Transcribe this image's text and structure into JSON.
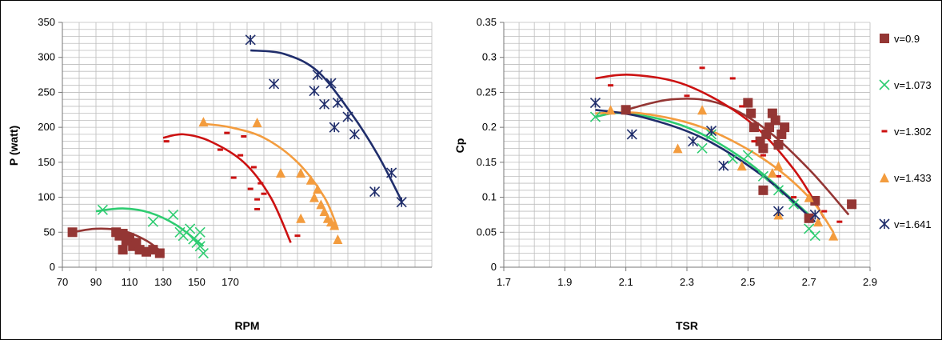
{
  "chart_data": [
    {
      "type": "scatter",
      "title": "",
      "xlabel": "RPM",
      "ylabel": "P (watt)",
      "xlim": [
        70,
        180
      ],
      "ylim": [
        0,
        350
      ],
      "xticks": [
        "70",
        "90",
        "110",
        "130",
        "150",
        "170"
      ],
      "yticks": [
        "0",
        "50",
        "100",
        "150",
        "200",
        "250",
        "300",
        "350"
      ],
      "grid": true,
      "series": [
        {
          "name": "v=0.9",
          "marker": "square",
          "color": "#943634",
          "points": [
            [
              73,
              50
            ],
            [
              86,
              50
            ],
            [
              87,
              45
            ],
            [
              88,
              48
            ],
            [
              89,
              38
            ],
            [
              90,
              42
            ],
            [
              88,
              25
            ],
            [
              91,
              30
            ],
            [
              92,
              35
            ],
            [
              93,
              25
            ],
            [
              95,
              22
            ],
            [
              97,
              25
            ],
            [
              99,
              20
            ]
          ],
          "trend": [
            [
              73,
              50
            ],
            [
              80,
              55
            ],
            [
              88,
              52
            ],
            [
              95,
              38
            ],
            [
              100,
              20
            ]
          ]
        },
        {
          "name": "v=1.073",
          "marker": "x",
          "color": "#2ecc71",
          "points": [
            [
              82,
              82
            ],
            [
              97,
              65
            ],
            [
              103,
              75
            ],
            [
              105,
              50
            ],
            [
              106,
              45
            ],
            [
              108,
              55
            ],
            [
              109,
              40
            ],
            [
              110,
              35
            ],
            [
              111,
              50
            ],
            [
              111,
              30
            ],
            [
              112,
              20
            ]
          ],
          "trend": [
            [
              80,
              80
            ],
            [
              88,
              84
            ],
            [
              96,
              78
            ],
            [
              104,
              60
            ],
            [
              112,
              30
            ]
          ]
        },
        {
          "name": "v=1.302",
          "marker": "dash",
          "color": "#cc1111",
          "points": [
            [
              101,
              180
            ],
            [
              117,
              168
            ],
            [
              119,
              192
            ],
            [
              121,
              128
            ],
            [
              123,
              160
            ],
            [
              124,
              187
            ],
            [
              126,
              112
            ],
            [
              127,
              143
            ],
            [
              128,
              97
            ],
            [
              128,
              83
            ],
            [
              129,
              120
            ],
            [
              130,
              105
            ],
            [
              140,
              45
            ]
          ],
          "trend": [
            [
              100,
              185
            ],
            [
              106,
              190
            ],
            [
              114,
              180
            ],
            [
              124,
              150
            ],
            [
              132,
              100
            ],
            [
              138,
              35
            ]
          ]
        },
        {
          "name": "v=1.433",
          "marker": "triangle",
          "color": "#f39c3e",
          "points": [
            [
              112,
              208
            ],
            [
              128,
              207
            ],
            [
              135,
              135
            ],
            [
              141,
              135
            ],
            [
              141,
              70
            ],
            [
              144,
              125
            ],
            [
              145,
              100
            ],
            [
              146,
              112
            ],
            [
              147,
              90
            ],
            [
              148,
              80
            ],
            [
              149,
              70
            ],
            [
              150,
              65
            ],
            [
              151,
              60
            ],
            [
              152,
              40
            ]
          ],
          "trend": [
            [
              112,
              205
            ],
            [
              120,
              200
            ],
            [
              130,
              185
            ],
            [
              140,
              150
            ],
            [
              148,
              100
            ],
            [
              152,
              55
            ]
          ]
        },
        {
          "name": "v=1.641",
          "marker": "star",
          "color": "#1f2d6b",
          "points": [
            [
              126,
              325
            ],
            [
              133,
              262
            ],
            [
              145,
              252
            ],
            [
              146,
              275
            ],
            [
              148,
              233
            ],
            [
              150,
              263
            ],
            [
              151,
              200
            ],
            [
              152,
              235
            ],
            [
              155,
              215
            ],
            [
              157,
              190
            ],
            [
              163,
              108
            ],
            [
              168,
              135
            ],
            [
              171,
              93
            ]
          ],
          "trend": [
            [
              126,
              310
            ],
            [
              136,
              305
            ],
            [
              146,
              280
            ],
            [
              156,
              220
            ],
            [
              164,
              160
            ],
            [
              171,
              95
            ]
          ]
        }
      ]
    },
    {
      "type": "scatter",
      "title": "",
      "xlabel": "TSR",
      "ylabel": "Cp",
      "xlim": [
        1.7,
        2.9
      ],
      "ylim": [
        0,
        0.35
      ],
      "xticks": [
        "1.7",
        "1.9",
        "2.1",
        "2.3",
        "2.5",
        "2.7",
        "2.9"
      ],
      "yticks": [
        "0",
        "0.05",
        "0.1",
        "0.15",
        "0.2",
        "0.25",
        "0.3",
        "0.35"
      ],
      "grid": true,
      "legend": {
        "position": "right",
        "entries": [
          "v=0.9",
          "v=1.073",
          "v=1.302",
          "v=1.433",
          "v=1.641"
        ]
      },
      "series": [
        {
          "name": "v=0.9",
          "marker": "square",
          "color": "#943634",
          "points": [
            [
              2.1,
              0.225
            ],
            [
              2.5,
              0.235
            ],
            [
              2.51,
              0.22
            ],
            [
              2.52,
              0.2
            ],
            [
              2.54,
              0.18
            ],
            [
              2.55,
              0.17
            ],
            [
              2.56,
              0.19
            ],
            [
              2.57,
              0.2
            ],
            [
              2.58,
              0.22
            ],
            [
              2.59,
              0.21
            ],
            [
              2.6,
              0.175
            ],
            [
              2.61,
              0.19
            ],
            [
              2.62,
              0.2
            ],
            [
              2.55,
              0.11
            ],
            [
              2.7,
              0.07
            ],
            [
              2.72,
              0.095
            ],
            [
              2.84,
              0.09
            ]
          ],
          "trend": [
            [
              2.1,
              0.225
            ],
            [
              2.25,
              0.24
            ],
            [
              2.4,
              0.235
            ],
            [
              2.55,
              0.2
            ],
            [
              2.7,
              0.14
            ],
            [
              2.83,
              0.075
            ]
          ]
        },
        {
          "name": "v=1.073",
          "marker": "x",
          "color": "#2ecc71",
          "points": [
            [
              2.0,
              0.215
            ],
            [
              2.35,
              0.17
            ],
            [
              2.38,
              0.19
            ],
            [
              2.45,
              0.155
            ],
            [
              2.5,
              0.16
            ],
            [
              2.55,
              0.13
            ],
            [
              2.6,
              0.11
            ],
            [
              2.65,
              0.09
            ],
            [
              2.7,
              0.055
            ],
            [
              2.72,
              0.045
            ]
          ],
          "trend": [
            [
              2.0,
              0.215
            ],
            [
              2.1,
              0.22
            ],
            [
              2.3,
              0.2
            ],
            [
              2.5,
              0.15
            ],
            [
              2.7,
              0.075
            ]
          ]
        },
        {
          "name": "v=1.302",
          "marker": "dash",
          "color": "#cc1111",
          "points": [
            [
              2.05,
              0.26
            ],
            [
              2.35,
              0.285
            ],
            [
              2.3,
              0.245
            ],
            [
              2.45,
              0.27
            ],
            [
              2.48,
              0.23
            ],
            [
              2.52,
              0.18
            ],
            [
              2.55,
              0.16
            ],
            [
              2.6,
              0.13
            ],
            [
              2.65,
              0.1
            ],
            [
              2.75,
              0.08
            ],
            [
              2.8,
              0.065
            ]
          ],
          "trend": [
            [
              2.0,
              0.27
            ],
            [
              2.12,
              0.275
            ],
            [
              2.3,
              0.26
            ],
            [
              2.5,
              0.21
            ],
            [
              2.65,
              0.14
            ],
            [
              2.75,
              0.07
            ]
          ]
        },
        {
          "name": "v=1.433",
          "marker": "triangle",
          "color": "#f39c3e",
          "points": [
            [
              2.05,
              0.225
            ],
            [
              2.27,
              0.17
            ],
            [
              2.35,
              0.225
            ],
            [
              2.48,
              0.145
            ],
            [
              2.58,
              0.135
            ],
            [
              2.6,
              0.145
            ],
            [
              2.6,
              0.075
            ],
            [
              2.7,
              0.1
            ],
            [
              2.73,
              0.065
            ],
            [
              2.78,
              0.045
            ]
          ],
          "trend": [
            [
              2.0,
              0.22
            ],
            [
              2.15,
              0.22
            ],
            [
              2.35,
              0.2
            ],
            [
              2.55,
              0.155
            ],
            [
              2.7,
              0.1
            ],
            [
              2.78,
              0.05
            ]
          ]
        },
        {
          "name": "v=1.641",
          "marker": "star",
          "color": "#1f2d6b",
          "points": [
            [
              2.0,
              0.235
            ],
            [
              2.12,
              0.19
            ],
            [
              2.32,
              0.18
            ],
            [
              2.38,
              0.195
            ],
            [
              2.42,
              0.145
            ],
            [
              2.6,
              0.08
            ],
            [
              2.72,
              0.075
            ]
          ],
          "trend": [
            [
              2.0,
              0.225
            ],
            [
              2.15,
              0.215
            ],
            [
              2.35,
              0.185
            ],
            [
              2.55,
              0.13
            ],
            [
              2.72,
              0.065
            ]
          ]
        }
      ]
    }
  ]
}
